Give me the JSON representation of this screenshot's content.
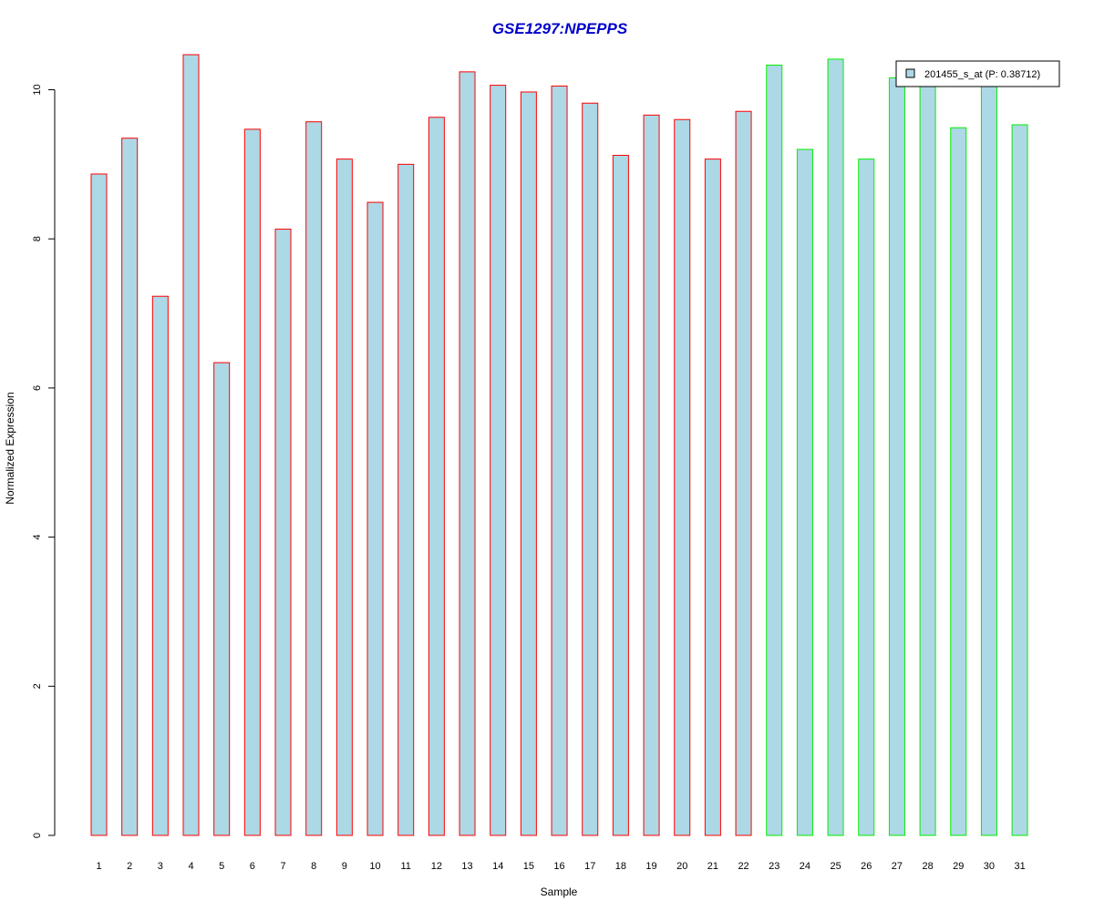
{
  "chart_data": {
    "type": "bar",
    "title": "GSE1297:NPEPPS",
    "xlabel": "Sample",
    "ylabel": "Normalized Expression",
    "ylim": [
      0,
      10.5
    ],
    "yticks": [
      0,
      2,
      4,
      6,
      8,
      10
    ],
    "grid": false,
    "legend_position": "top-right",
    "categories": [
      "1",
      "2",
      "3",
      "4",
      "5",
      "6",
      "7",
      "8",
      "9",
      "10",
      "11",
      "12",
      "13",
      "14",
      "15",
      "16",
      "17",
      "18",
      "19",
      "20",
      "21",
      "22",
      "23",
      "24",
      "25",
      "26",
      "27",
      "28",
      "29",
      "30",
      "31"
    ],
    "series": [
      {
        "name": "201455_s_at (P: 0.38712)",
        "values": [
          8.87,
          9.35,
          7.23,
          10.47,
          6.34,
          9.47,
          8.13,
          9.57,
          9.07,
          8.49,
          9.0,
          9.63,
          10.24,
          10.06,
          9.97,
          10.05,
          9.82,
          9.12,
          9.66,
          9.6,
          9.07,
          9.71,
          10.33,
          9.2,
          10.41,
          9.07,
          10.16,
          10.06,
          9.49,
          10.06,
          9.53
        ]
      }
    ],
    "groups": [
      {
        "color": "#ff0000",
        "from": 1,
        "to": 22
      },
      {
        "color": "#00ee00",
        "from": 23,
        "to": 31
      }
    ],
    "colors": {
      "bar_fill": "#add8e6",
      "title": "#0000cc",
      "group1_border": "#ff0000",
      "group2_border": "#00ee00"
    }
  }
}
